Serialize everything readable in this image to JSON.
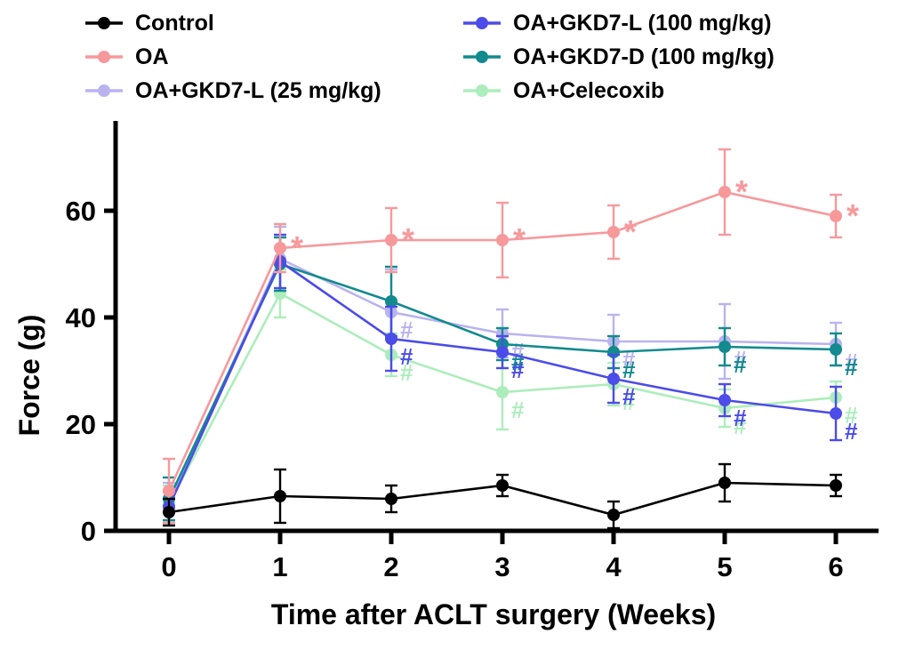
{
  "legend": {
    "items": [
      {
        "label": "Control",
        "color": "#000000"
      },
      {
        "label": "OA",
        "color": "#F7989B"
      },
      {
        "label": "OA+GKD7-L (25 mg/kg)",
        "color": "#B9B4EF"
      },
      {
        "label": "OA+GKD7-L (100 mg/kg)",
        "color": "#4C4CE8"
      },
      {
        "label": "OA+GKD7-D (100 mg/kg)",
        "color": "#128A8E"
      },
      {
        "label": "OA+Celecoxib",
        "color": "#ACEDBB"
      }
    ]
  },
  "chart_data": {
    "type": "line",
    "x": [
      0,
      1,
      2,
      3,
      4,
      5,
      6
    ],
    "xlabel": "Time after ACLT  surgery (Weeks)",
    "ylabel": "Force (g)",
    "ylim": [
      0,
      76
    ],
    "yticks": [
      0,
      20,
      40,
      60
    ],
    "grid": false,
    "error_bars": true,
    "legend_position": "top",
    "draw_order": [
      2,
      5,
      4,
      3,
      1,
      0
    ],
    "significance_symbols": {
      "vs_control": "*",
      "vs_oa": "#"
    },
    "series": [
      {
        "name": "Control",
        "color": "#000000",
        "values": [
          3.5,
          6.5,
          6,
          8.5,
          3,
          9,
          8.5
        ],
        "errors": [
          2.5,
          5,
          2.5,
          2,
          2.5,
          3.5,
          2
        ],
        "annotations": [
          "",
          "",
          "",
          "",
          "",
          "",
          ""
        ]
      },
      {
        "name": "OA",
        "color": "#F7989B",
        "values": [
          7.5,
          53,
          54.5,
          54.5,
          56,
          63.5,
          59
        ],
        "errors": [
          6,
          4.5,
          6,
          7,
          5,
          8,
          4
        ],
        "annotations": [
          "",
          "*",
          "*",
          "*",
          "*",
          "*",
          "*"
        ]
      },
      {
        "name": "OA+GKD7-L (25 mg/kg)",
        "color": "#B9B4EF",
        "values": [
          5,
          51,
          41,
          37,
          35.5,
          35.5,
          35
        ],
        "errors": [
          4,
          6,
          8,
          4.5,
          5,
          7,
          4
        ],
        "annotations": [
          "",
          "",
          "#",
          "#",
          "#",
          "#",
          "#"
        ]
      },
      {
        "name": "OA+GKD7-L (100 mg/kg)",
        "color": "#4C4CE8",
        "values": [
          4.5,
          50.5,
          36,
          33.5,
          28.5,
          24.5,
          22
        ],
        "errors": [
          3,
          5,
          6,
          3,
          4.5,
          3,
          5
        ],
        "annotations": [
          "",
          "",
          "#",
          "#",
          "#",
          "#",
          "#"
        ]
      },
      {
        "name": "OA+GKD7-D (100 mg/kg)",
        "color": "#128A8E",
        "values": [
          6,
          50,
          43,
          35,
          33.5,
          34.5,
          34
        ],
        "errors": [
          4,
          5,
          6.5,
          3,
          3,
          3.5,
          3
        ],
        "annotations": [
          "",
          "",
          "",
          "#",
          "#",
          "#",
          "#"
        ]
      },
      {
        "name": "OA+Celecoxib",
        "color": "#ACEDBB",
        "values": [
          5,
          44.5,
          33,
          26,
          27.5,
          23,
          25
        ],
        "errors": [
          3.5,
          4.5,
          4,
          7,
          4,
          3.5,
          3
        ],
        "annotations": [
          "",
          "",
          "#",
          "#",
          "#",
          "#",
          "#"
        ]
      }
    ]
  }
}
